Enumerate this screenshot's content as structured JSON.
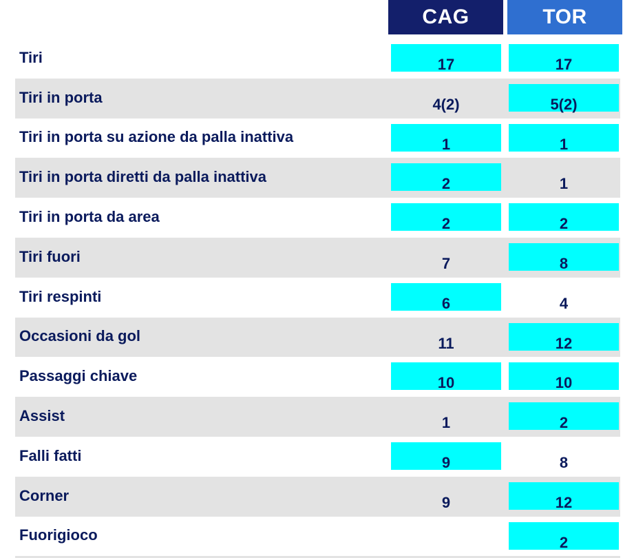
{
  "teams": {
    "home": "CAG",
    "away": "TOR"
  },
  "colors": {
    "home_header": "#131f6b",
    "away_header": "#2f6fd0",
    "highlight": "#00ffff",
    "row_shade": "#e3e3e3",
    "text": "#0a1a5c"
  },
  "stats": [
    {
      "label": "Tiri",
      "home": "17",
      "away": "17",
      "home_hl": true,
      "away_hl": true
    },
    {
      "label": "Tiri in porta",
      "home": "4(2)",
      "away": "5(2)",
      "home_hl": false,
      "away_hl": true
    },
    {
      "label": "Tiri in porta su azione da palla inattiva",
      "home": "1",
      "away": "1",
      "home_hl": true,
      "away_hl": true
    },
    {
      "label": "Tiri in porta diretti da palla inattiva",
      "home": "2",
      "away": "1",
      "home_hl": true,
      "away_hl": false
    },
    {
      "label": "Tiri in porta da area",
      "home": "2",
      "away": "2",
      "home_hl": true,
      "away_hl": true
    },
    {
      "label": "Tiri fuori",
      "home": "7",
      "away": "8",
      "home_hl": false,
      "away_hl": true
    },
    {
      "label": "Tiri respinti",
      "home": "6",
      "away": "4",
      "home_hl": true,
      "away_hl": false
    },
    {
      "label": "Occasioni da gol",
      "home": "11",
      "away": "12",
      "home_hl": false,
      "away_hl": true
    },
    {
      "label": "Passaggi chiave",
      "home": "10",
      "away": "10",
      "home_hl": true,
      "away_hl": true
    },
    {
      "label": "Assist",
      "home": "1",
      "away": "2",
      "home_hl": false,
      "away_hl": true
    },
    {
      "label": "Falli fatti",
      "home": "9",
      "away": "8",
      "home_hl": true,
      "away_hl": false
    },
    {
      "label": "Corner",
      "home": "9",
      "away": "12",
      "home_hl": false,
      "away_hl": true
    },
    {
      "label": "Fuorigioco",
      "home": "",
      "away": "2",
      "home_hl": false,
      "away_hl": true
    }
  ]
}
